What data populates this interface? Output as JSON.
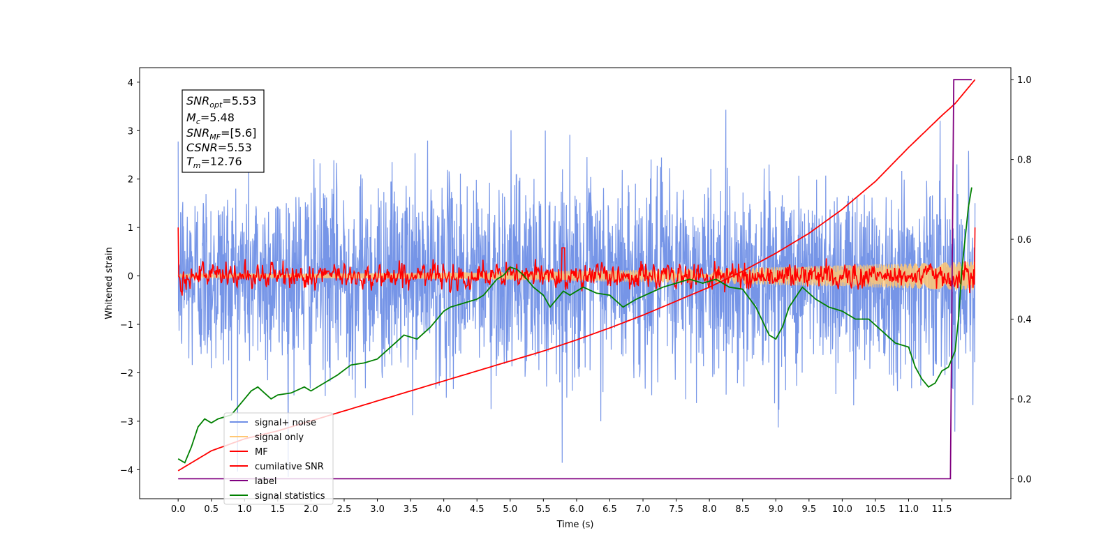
{
  "chart_data": {
    "type": "line",
    "xlabel": "Time (s)",
    "ylabel_left": "Whitened strain",
    "ylabel_right": "",
    "xlim": [
      -0.58,
      12.54
    ],
    "ylim_left": [
      -4.6,
      4.3
    ],
    "ylim_right": [
      -0.05,
      1.03
    ],
    "x_ticks": [
      "0.0",
      "0.5",
      "1.0",
      "1.5",
      "2.0",
      "2.5",
      "3.0",
      "3.5",
      "4.0",
      "4.5",
      "5.0",
      "5.5",
      "6.0",
      "6.5",
      "7.0",
      "7.5",
      "8.0",
      "8.5",
      "9.0",
      "9.5",
      "10.0",
      "10.5",
      "11.0",
      "11.5"
    ],
    "y_left_ticks": [
      "4",
      "3",
      "2",
      "1",
      "0",
      "−1",
      "−2",
      "−3",
      "−4"
    ],
    "y_right_ticks": [
      "1.0",
      "0.8",
      "0.6",
      "0.4",
      "0.2",
      "0.0"
    ],
    "grid": false,
    "legend_position": "lower-left",
    "annotation": {
      "snr_opt": {
        "base": "SNR",
        "sub": "opt",
        "value": "=5.53"
      },
      "mc": {
        "base": "M",
        "sub": "c",
        "value": "=5.48"
      },
      "snr_mf": {
        "base": "SNR",
        "sub": "MF",
        "value": "=[5.6]"
      },
      "csnr": {
        "base": "CSNR",
        "sub": "",
        "value": "=5.53"
      },
      "tm": {
        "base": "T",
        "sub": "m",
        "value": "=12.76"
      }
    },
    "series": [
      {
        "name": "signal+ noise",
        "axis": "left",
        "color": "#6f8fe6",
        "kind": "noise",
        "t_range": [
          0,
          12
        ],
        "mean": 0.0,
        "std": 1.0,
        "extreme_low": -4.15,
        "extreme_high": 3.92
      },
      {
        "name": "signal only",
        "axis": "left",
        "color": "#ffc773",
        "kind": "chirp",
        "t_range": [
          0,
          12
        ],
        "amp_start": 0.04,
        "amp_end": 0.3
      },
      {
        "name": "MF",
        "axis": "left",
        "color": "#ff0000",
        "kind": "mf",
        "t_range": [
          0,
          12
        ],
        "start_value": 1.0,
        "end_value": 1.0,
        "peak": [
          5.8,
          0.58
        ]
      },
      {
        "name": "cumilative SNR",
        "axis": "right",
        "color": "#ff0000",
        "x": [
          0,
          0.5,
          1.0,
          1.5,
          2.0,
          2.5,
          3.0,
          3.5,
          4.0,
          4.5,
          5.0,
          5.5,
          6.0,
          6.5,
          7.0,
          7.5,
          8.0,
          8.5,
          9.0,
          9.5,
          10.0,
          10.5,
          11.0,
          11.5,
          11.7,
          11.85,
          12.0
        ],
        "y": [
          0.02,
          0.07,
          0.1,
          0.12,
          0.145,
          0.17,
          0.195,
          0.22,
          0.245,
          0.27,
          0.295,
          0.32,
          0.348,
          0.378,
          0.41,
          0.445,
          0.48,
          0.52,
          0.565,
          0.615,
          0.675,
          0.745,
          0.83,
          0.91,
          0.94,
          0.97,
          1.0
        ]
      },
      {
        "name": "label",
        "axis": "right",
        "color": "#800080",
        "x": [
          0,
          11.63,
          11.63,
          11.68,
          11.68,
          11.95
        ],
        "y": [
          0.0,
          0.0,
          0.0,
          1.0,
          1.0,
          1.0
        ]
      },
      {
        "name": "signal statistics",
        "axis": "right",
        "color": "#008000",
        "x": [
          0.0,
          0.1,
          0.2,
          0.3,
          0.4,
          0.5,
          0.6,
          0.8,
          1.0,
          1.1,
          1.2,
          1.3,
          1.4,
          1.5,
          1.7,
          1.9,
          2.0,
          2.2,
          2.4,
          2.6,
          2.8,
          3.0,
          3.2,
          3.4,
          3.6,
          3.8,
          4.0,
          4.1,
          4.3,
          4.5,
          4.6,
          4.8,
          4.9,
          5.0,
          5.1,
          5.2,
          5.35,
          5.5,
          5.6,
          5.8,
          5.9,
          6.1,
          6.3,
          6.5,
          6.7,
          6.9,
          7.1,
          7.3,
          7.5,
          7.7,
          7.9,
          8.1,
          8.3,
          8.5,
          8.7,
          8.9,
          9.0,
          9.1,
          9.2,
          9.4,
          9.6,
          9.8,
          10.0,
          10.2,
          10.4,
          10.6,
          10.8,
          11.0,
          11.1,
          11.2,
          11.3,
          11.4,
          11.5,
          11.6,
          11.7,
          11.75,
          11.8,
          11.9,
          11.95
        ],
        "y": [
          0.05,
          0.04,
          0.08,
          0.13,
          0.15,
          0.14,
          0.15,
          0.16,
          0.2,
          0.22,
          0.23,
          0.215,
          0.2,
          0.21,
          0.215,
          0.23,
          0.22,
          0.24,
          0.26,
          0.285,
          0.29,
          0.3,
          0.33,
          0.36,
          0.35,
          0.38,
          0.42,
          0.43,
          0.44,
          0.45,
          0.46,
          0.5,
          0.51,
          0.53,
          0.525,
          0.51,
          0.48,
          0.46,
          0.43,
          0.47,
          0.46,
          0.48,
          0.465,
          0.46,
          0.43,
          0.45,
          0.465,
          0.48,
          0.49,
          0.5,
          0.49,
          0.5,
          0.48,
          0.475,
          0.43,
          0.36,
          0.35,
          0.38,
          0.43,
          0.48,
          0.45,
          0.43,
          0.42,
          0.4,
          0.4,
          0.37,
          0.34,
          0.33,
          0.28,
          0.25,
          0.23,
          0.24,
          0.27,
          0.28,
          0.32,
          0.4,
          0.52,
          0.68,
          0.73
        ]
      }
    ]
  }
}
